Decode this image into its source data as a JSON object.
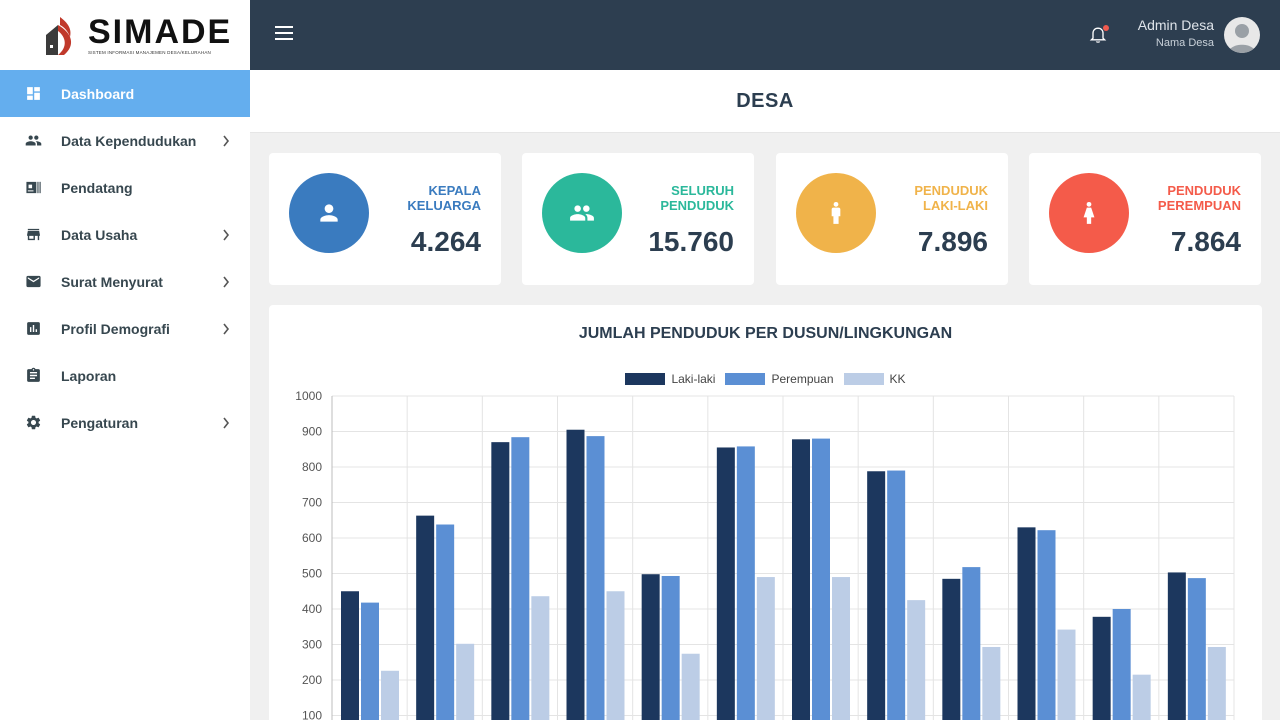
{
  "app": {
    "logo_title": "SIMADE",
    "logo_subtitle": "SISTEM INFORMASI MANAJEMEN DESA/KELURAHAN"
  },
  "sidebar": {
    "items": [
      {
        "label": "Dashboard",
        "icon": "dashboard-icon",
        "active": true,
        "has_children": false
      },
      {
        "label": "Data Kependudukan",
        "icon": "people-icon",
        "active": false,
        "has_children": true
      },
      {
        "label": "Pendatang",
        "icon": "id-card-icon",
        "active": false,
        "has_children": false
      },
      {
        "label": "Data Usaha",
        "icon": "store-icon",
        "active": false,
        "has_children": true
      },
      {
        "label": "Surat Menyurat",
        "icon": "mail-icon",
        "active": false,
        "has_children": true
      },
      {
        "label": "Profil Demografi",
        "icon": "bar-chart-icon",
        "active": false,
        "has_children": true
      },
      {
        "label": "Laporan",
        "icon": "clipboard-icon",
        "active": false,
        "has_children": false
      },
      {
        "label": "Pengaturan",
        "icon": "gear-icon",
        "active": false,
        "has_children": true
      }
    ]
  },
  "header": {
    "user_name": "Admin Desa",
    "user_role": "Nama Desa"
  },
  "page": {
    "title": "DESA"
  },
  "stats": [
    {
      "label_line1": "KEPALA",
      "label_line2": "KELUARGA",
      "value": "4.264",
      "color": "#3a7bbf",
      "icon": "person-icon"
    },
    {
      "label_line1": "SELURUH",
      "label_line2": "PENDUDUK",
      "value": "15.760",
      "color": "#2bb89b",
      "icon": "group-icon"
    },
    {
      "label_line1": "PENDUDUK",
      "label_line2": "LAKI-LAKI",
      "value": "7.896",
      "color": "#f0b34a",
      "icon": "male-icon"
    },
    {
      "label_line1": "PENDUDUK",
      "label_line2": "PEREMPUAN",
      "value": "7.864",
      "color": "#f45b4a",
      "icon": "female-icon"
    }
  ],
  "chart_data": {
    "type": "bar",
    "title": "JUMLAH PENDUDUK PER DUSUN/LINGKUNGAN",
    "legend_position": "top",
    "grid": true,
    "ylim": [
      0,
      1000
    ],
    "yticks_visible": [
      1000,
      900,
      800,
      700,
      600,
      500,
      400,
      300,
      200,
      100
    ],
    "categories_count": 12,
    "series": [
      {
        "name": "Laki-laki",
        "color": "#1c375e",
        "values": [
          450,
          663,
          870,
          905,
          498,
          855,
          878,
          788,
          485,
          630,
          378,
          503
        ]
      },
      {
        "name": "Perempuan",
        "color": "#5b8fd4",
        "values": [
          418,
          638,
          884,
          887,
          493,
          858,
          880,
          790,
          518,
          622,
          400,
          487
        ]
      },
      {
        "name": "KK",
        "color": "#bccde6",
        "values": [
          226,
          302,
          436,
          450,
          274,
          490,
          490,
          425,
          293,
          342,
          215,
          293
        ]
      }
    ]
  }
}
